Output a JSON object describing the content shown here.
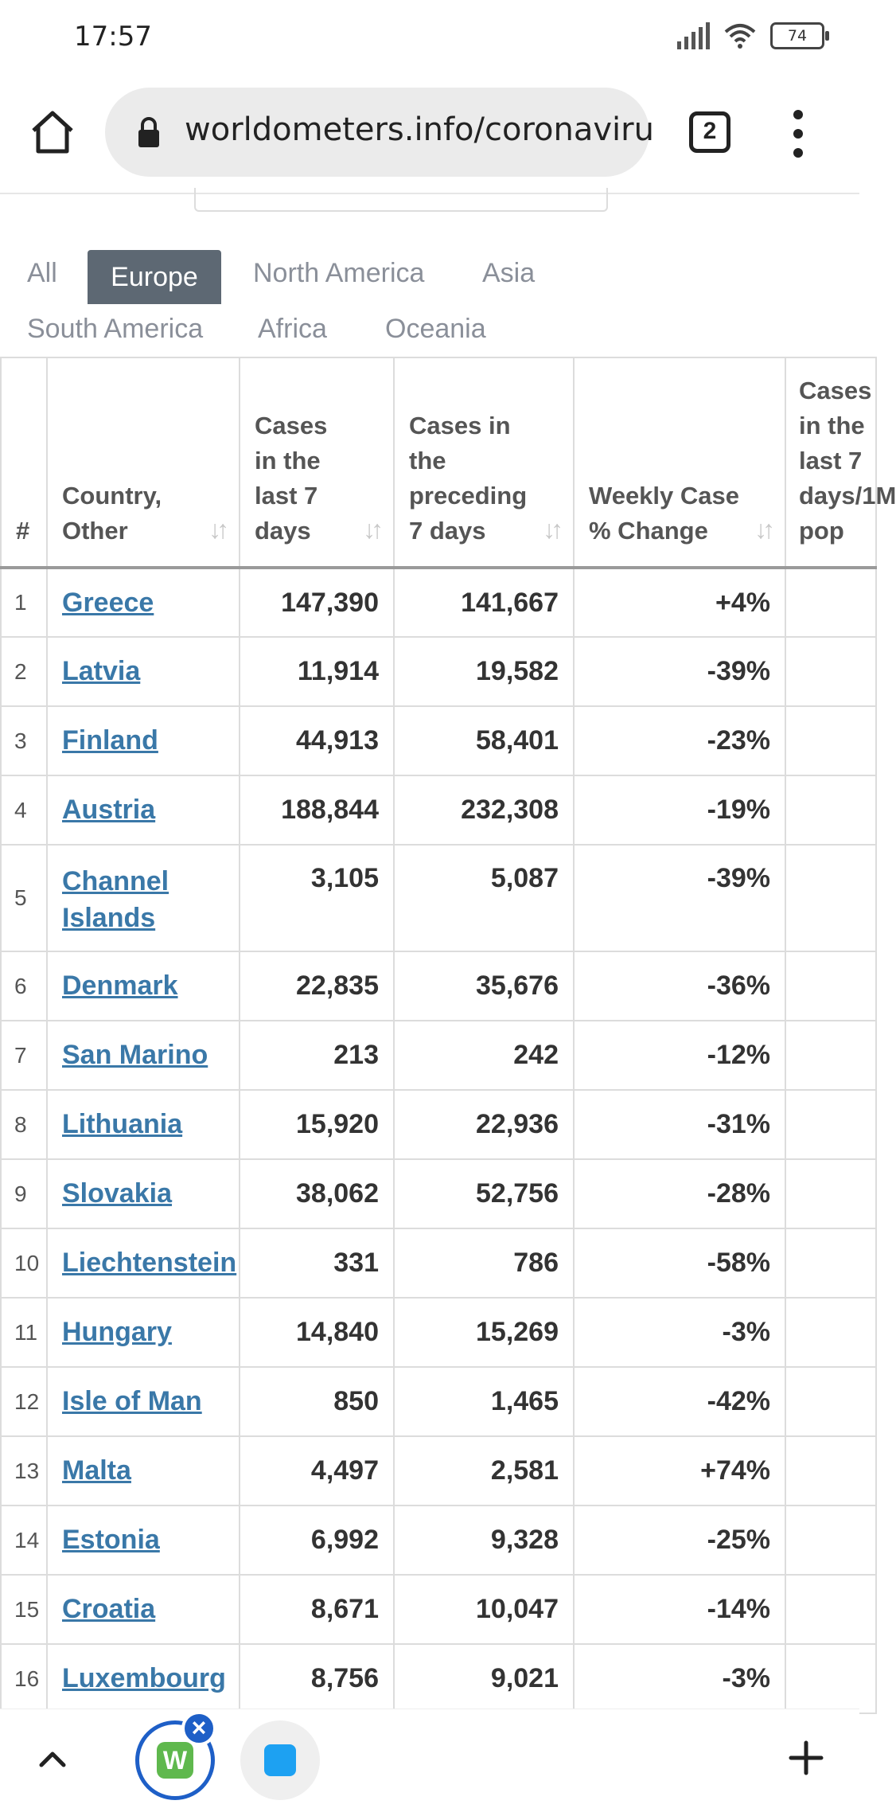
{
  "status_bar": {
    "time": "17:57",
    "battery": "74"
  },
  "browser": {
    "url": "worldometers.info/coronaviru",
    "tab_count": "2"
  },
  "region_tabs": [
    {
      "label": "All",
      "active": false
    },
    {
      "label": "Europe",
      "active": true
    },
    {
      "label": "North America",
      "active": false
    },
    {
      "label": "Asia",
      "active": false
    },
    {
      "label": "South America",
      "active": false
    },
    {
      "label": "Africa",
      "active": false
    },
    {
      "label": "Oceania",
      "active": false
    }
  ],
  "table": {
    "headers": {
      "num": "#",
      "country": "Country, Other",
      "cases7": "Cases in the last 7 days",
      "casesPrev": "Cases in the preceding 7 days",
      "change": "Weekly Case % Change",
      "extra": "Cases in the last 7 days/1M pop"
    },
    "rows": [
      {
        "n": "1",
        "country": "Greece",
        "cases7": "147,390",
        "prev": "141,667",
        "change": "+4%"
      },
      {
        "n": "2",
        "country": "Latvia",
        "cases7": "11,914",
        "prev": "19,582",
        "change": "-39%"
      },
      {
        "n": "3",
        "country": "Finland",
        "cases7": "44,913",
        "prev": "58,401",
        "change": "-23%"
      },
      {
        "n": "4",
        "country": "Austria",
        "cases7": "188,844",
        "prev": "232,308",
        "change": "-19%"
      },
      {
        "n": "5",
        "country": "Channel Islands",
        "cases7": "3,105",
        "prev": "5,087",
        "change": "-39%"
      },
      {
        "n": "6",
        "country": "Denmark",
        "cases7": "22,835",
        "prev": "35,676",
        "change": "-36%"
      },
      {
        "n": "7",
        "country": "San Marino",
        "cases7": "213",
        "prev": "242",
        "change": "-12%"
      },
      {
        "n": "8",
        "country": "Lithuania",
        "cases7": "15,920",
        "prev": "22,936",
        "change": "-31%"
      },
      {
        "n": "9",
        "country": "Slovakia",
        "cases7": "38,062",
        "prev": "52,756",
        "change": "-28%"
      },
      {
        "n": "10",
        "country": "Liechtenstein",
        "cases7": "331",
        "prev": "786",
        "change": "-58%"
      },
      {
        "n": "11",
        "country": "Hungary",
        "cases7": "14,840",
        "prev": "15,269",
        "change": "-3%"
      },
      {
        "n": "12",
        "country": "Isle of Man",
        "cases7": "850",
        "prev": "1,465",
        "change": "-42%"
      },
      {
        "n": "13",
        "country": "Malta",
        "cases7": "4,497",
        "prev": "2,581",
        "change": "+74%"
      },
      {
        "n": "14",
        "country": "Estonia",
        "cases7": "6,992",
        "prev": "9,328",
        "change": "-25%"
      },
      {
        "n": "15",
        "country": "Croatia",
        "cases7": "8,671",
        "prev": "10,047",
        "change": "-14%"
      },
      {
        "n": "16",
        "country": "Luxembourg",
        "cases7": "8,756",
        "prev": "9,021",
        "change": "-3%"
      }
    ]
  },
  "bottom_bar": {
    "tab1_icon": "W"
  }
}
